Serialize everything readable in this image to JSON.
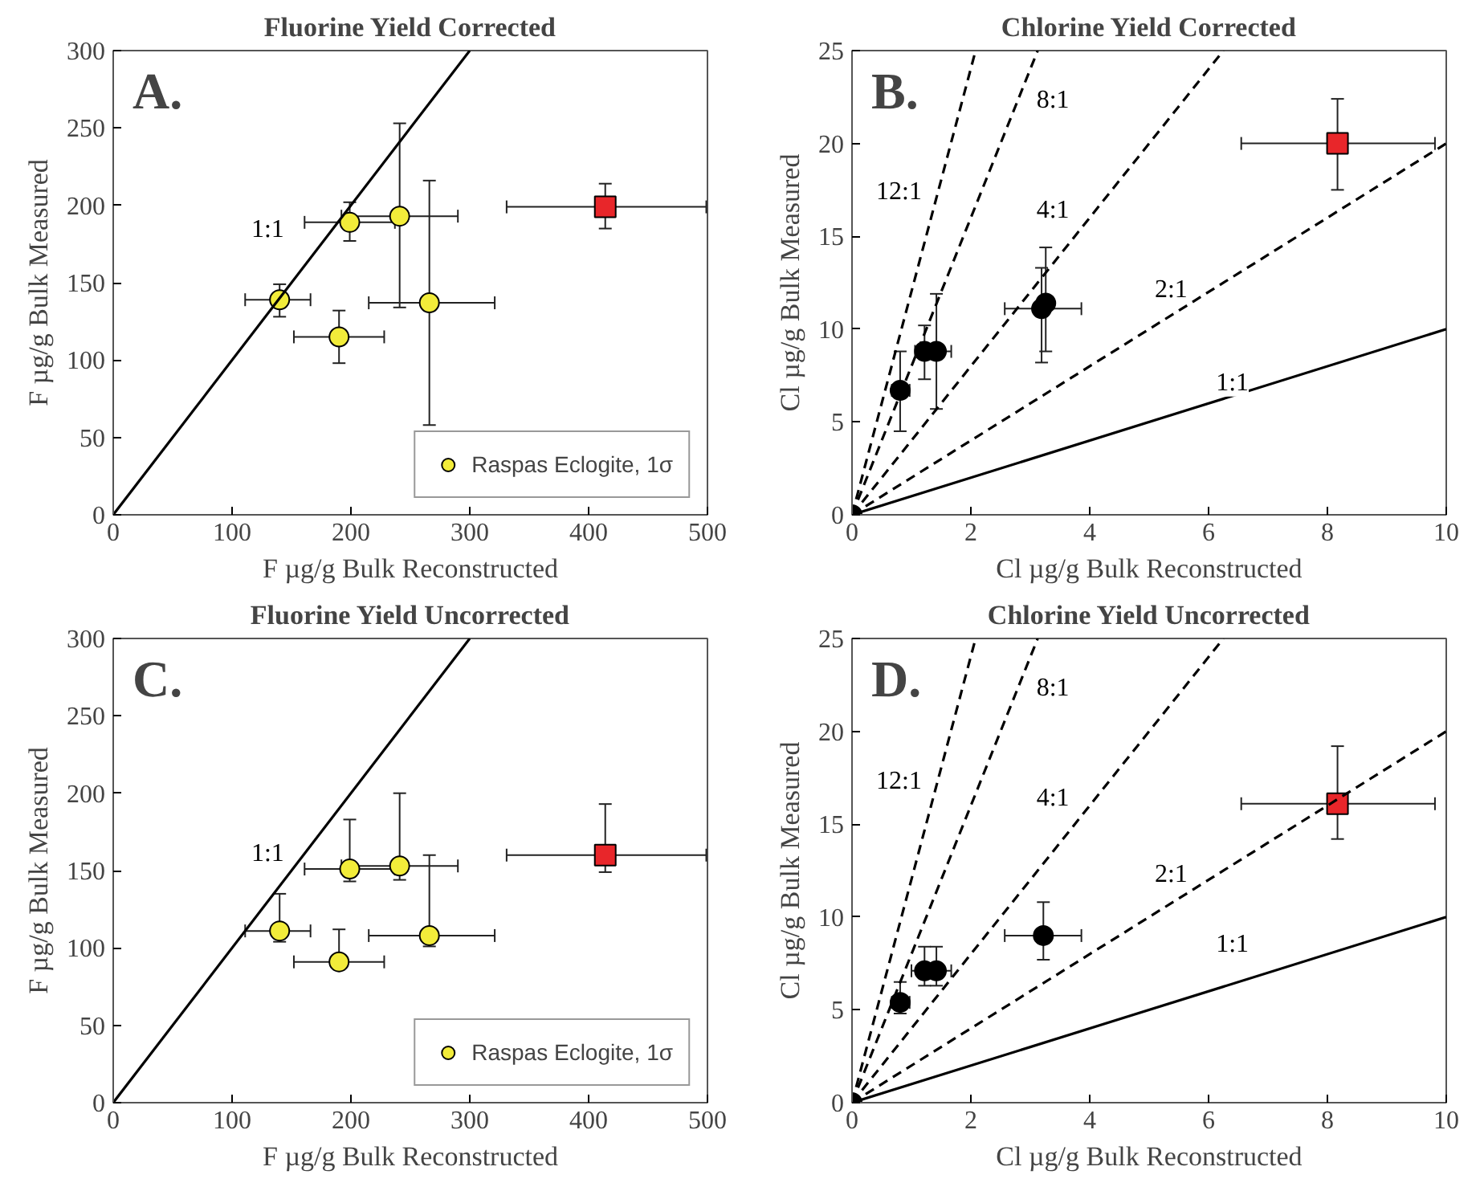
{
  "chart_data": [
    {
      "type": "scatter",
      "title": "Fluorine Yield Corrected",
      "xlabel": "F µg/g Bulk Reconstructed",
      "ylabel": "F µg/g Bulk Measured",
      "xlim": [
        0,
        500
      ],
      "ylim": [
        0,
        300
      ],
      "xticks": [
        0,
        100,
        200,
        300,
        400,
        500
      ],
      "yticks": [
        0,
        50,
        100,
        150,
        200,
        250,
        300
      ],
      "grid": false,
      "legend": "bottom right",
      "annotations": [
        "A.",
        {
          "text": "1:1",
          "x": 130,
          "y": 184
        }
      ],
      "series": [
        {
          "name": "Raspas Eclogite, 1σ",
          "color": "#f2ec3a",
          "marker": "circle",
          "x": [
            140,
            199,
            241,
            266,
            190
          ],
          "values": [
            139,
            189,
            193,
            137,
            115
          ],
          "errors": [
            [
              128,
              149
            ],
            [
              177,
              202
            ],
            [
              134,
              253
            ],
            [
              58,
              216
            ],
            [
              98,
              132
            ]
          ],
          "xerrors": [
            [
              111,
              166
            ],
            [
              161,
              237
            ],
            [
              192,
              290
            ],
            [
              215,
              321
            ],
            [
              152,
              228
            ]
          ]
        },
        {
          "color": "#e8262a",
          "marker": "square",
          "x": [
            414
          ],
          "values": [
            199
          ],
          "errors": [
            [
              185,
              214
            ]
          ],
          "xerrors": [
            [
              331,
              499
            ]
          ]
        },
        {
          "type": "line",
          "color": "#000000",
          "line_style": "solid",
          "marker": "none",
          "x": [
            0,
            300
          ],
          "values": [
            0,
            300
          ]
        }
      ]
    },
    {
      "type": "scatter",
      "title": "Chlorine Yield Corrected",
      "xlabel": "Cl µg/g Bulk Reconstructed",
      "ylabel": "Cl µg/g Bulk Measured",
      "xlim": [
        0,
        10
      ],
      "ylim": [
        0,
        25
      ],
      "xticks": [
        0,
        2,
        4,
        6,
        8,
        10
      ],
      "yticks": [
        0,
        5,
        10,
        15,
        20,
        25
      ],
      "grid": false,
      "annotations": [
        "B.",
        {
          "text": "1:1",
          "x": 6.4,
          "y": 7.1
        },
        {
          "text": "2:1",
          "x": 5.37,
          "y": 12.1
        },
        {
          "text": "4:1",
          "x": 3.38,
          "y": 16.4
        },
        {
          "text": "8:1",
          "x": 3.38,
          "y": 22.3
        },
        {
          "text": "12:1",
          "x": 0.79,
          "y": 17.4
        }
      ],
      "series": [
        {
          "color": "#000000",
          "marker": "circle",
          "x": [
            0,
            0.81,
            1.22,
            1.42,
            3.19,
            3.26
          ],
          "values": [
            0,
            6.7,
            8.8,
            8.8,
            11.1,
            11.4
          ],
          "errors": [
            null,
            [
              4.5,
              8.8
            ],
            [
              7.3,
              10.2
            ],
            [
              5.7,
              11.9
            ],
            [
              8.2,
              13.3
            ],
            [
              8.8,
              14.4
            ]
          ],
          "xerrors": [
            null,
            [
              0.67,
              0.97
            ],
            null,
            [
              1.06,
              1.67
            ],
            [
              2.57,
              3.86
            ],
            null
          ]
        },
        {
          "color": "#e8262a",
          "marker": "square",
          "x": [
            8.17
          ],
          "values": [
            20
          ],
          "errors": [
            [
              17.5,
              22.4
            ]
          ],
          "xerrors": [
            [
              6.55,
              9.81
            ]
          ]
        },
        {
          "type": "line",
          "color": "#000000",
          "line_style": "solid",
          "marker": "none",
          "x": [
            0,
            10
          ],
          "values": [
            0,
            10
          ]
        },
        {
          "type": "line",
          "color": "#000000",
          "line_style": "dashed",
          "marker": "none",
          "x": [
            0,
            10
          ],
          "values": [
            0,
            20
          ]
        },
        {
          "type": "line",
          "color": "#000000",
          "line_style": "dashed",
          "marker": "none",
          "x": [
            0,
            6.25
          ],
          "values": [
            0,
            25
          ]
        },
        {
          "type": "line",
          "color": "#000000",
          "line_style": "dashed",
          "marker": "none",
          "x": [
            0,
            3.125
          ],
          "values": [
            0,
            25
          ]
        },
        {
          "type": "line",
          "color": "#000000",
          "line_style": "dashed",
          "marker": "none",
          "x": [
            0,
            2.08
          ],
          "values": [
            0,
            25
          ]
        }
      ]
    },
    {
      "type": "scatter",
      "title": "Fluorine Yield Uncorrected",
      "xlabel": "F µg/g Bulk Reconstructed",
      "ylabel": "F µg/g Bulk Measured",
      "xlim": [
        0,
        500
      ],
      "ylim": [
        0,
        300
      ],
      "xticks": [
        0,
        100,
        200,
        300,
        400,
        500
      ],
      "yticks": [
        0,
        50,
        100,
        150,
        200,
        250,
        300
      ],
      "grid": false,
      "legend": "bottom right",
      "annotations": [
        "C.",
        {
          "text": "1:1",
          "x": 130,
          "y": 161
        }
      ],
      "series": [
        {
          "name": "Raspas Eclogite, 1σ",
          "color": "#f2ec3a",
          "marker": "circle",
          "x": [
            140,
            199,
            241,
            266,
            190
          ],
          "values": [
            111,
            151,
            153,
            108,
            91
          ],
          "errors": [
            [
              104,
              135
            ],
            [
              143,
              183
            ],
            [
              144,
              200
            ],
            [
              101,
              160
            ],
            [
              87,
              112
            ]
          ],
          "xerrors": [
            [
              111,
              166
            ],
            [
              161,
              237
            ],
            [
              192,
              290
            ],
            [
              215,
              321
            ],
            [
              152,
              228
            ]
          ]
        },
        {
          "color": "#e8262a",
          "marker": "square",
          "x": [
            414
          ],
          "values": [
            160
          ],
          "errors": [
            [
              149,
              193
            ]
          ],
          "xerrors": [
            [
              331,
              499
            ]
          ]
        },
        {
          "type": "line",
          "color": "#000000",
          "line_style": "solid",
          "marker": "none",
          "x": [
            0,
            300
          ],
          "values": [
            0,
            300
          ]
        }
      ]
    },
    {
      "type": "scatter",
      "title": "Chlorine Yield Uncorrected",
      "xlabel": "Cl µg/g Bulk Reconstructed",
      "ylabel": "Cl µg/g Bulk Measured",
      "xlim": [
        0,
        10
      ],
      "ylim": [
        0,
        25
      ],
      "xticks": [
        0,
        2,
        4,
        6,
        8,
        10
      ],
      "yticks": [
        0,
        5,
        10,
        15,
        20,
        25
      ],
      "grid": false,
      "annotations": [
        "D.",
        {
          "text": "1:1",
          "x": 6.4,
          "y": 8.5
        },
        {
          "text": "2:1",
          "x": 5.37,
          "y": 12.3
        },
        {
          "text": "4:1",
          "x": 3.38,
          "y": 16.4
        },
        {
          "text": "8:1",
          "x": 3.38,
          "y": 22.3
        },
        {
          "text": "12:1",
          "x": 0.79,
          "y": 17.3
        }
      ],
      "series": [
        {
          "color": "#000000",
          "marker": "circle",
          "x": [
            0,
            0.81,
            1.22,
            1.42,
            3.22
          ],
          "values": [
            0,
            5.4,
            7.1,
            7.1,
            9.0
          ],
          "errors": [
            null,
            [
              4.8,
              6.5
            ],
            [
              6.3,
              8.4
            ],
            [
              6.3,
              8.4
            ],
            [
              7.7,
              10.8
            ]
          ],
          "xerrors": [
            null,
            [
              0.67,
              0.97
            ],
            null,
            [
              1.0,
              1.67
            ],
            [
              2.57,
              3.86
            ]
          ]
        },
        {
          "color": "#e8262a",
          "marker": "square",
          "x": [
            8.17
          ],
          "values": [
            16.1
          ],
          "errors": [
            [
              14.2,
              19.2
            ]
          ],
          "xerrors": [
            [
              6.55,
              9.81
            ]
          ]
        },
        {
          "type": "line",
          "color": "#000000",
          "line_style": "solid",
          "marker": "none",
          "x": [
            0,
            10
          ],
          "values": [
            0,
            10
          ]
        },
        {
          "type": "line",
          "color": "#000000",
          "line_style": "dashed",
          "marker": "none",
          "x": [
            0,
            10
          ],
          "values": [
            0,
            20
          ]
        },
        {
          "type": "line",
          "color": "#000000",
          "line_style": "dashed",
          "marker": "none",
          "x": [
            0,
            6.25
          ],
          "values": [
            0,
            25
          ]
        },
        {
          "type": "line",
          "color": "#000000",
          "line_style": "dashed",
          "marker": "none",
          "x": [
            0,
            3.125
          ],
          "values": [
            0,
            25
          ]
        },
        {
          "type": "line",
          "color": "#000000",
          "line_style": "dashed",
          "marker": "none",
          "x": [
            0,
            2.08
          ],
          "values": [
            0,
            25
          ]
        }
      ]
    }
  ]
}
